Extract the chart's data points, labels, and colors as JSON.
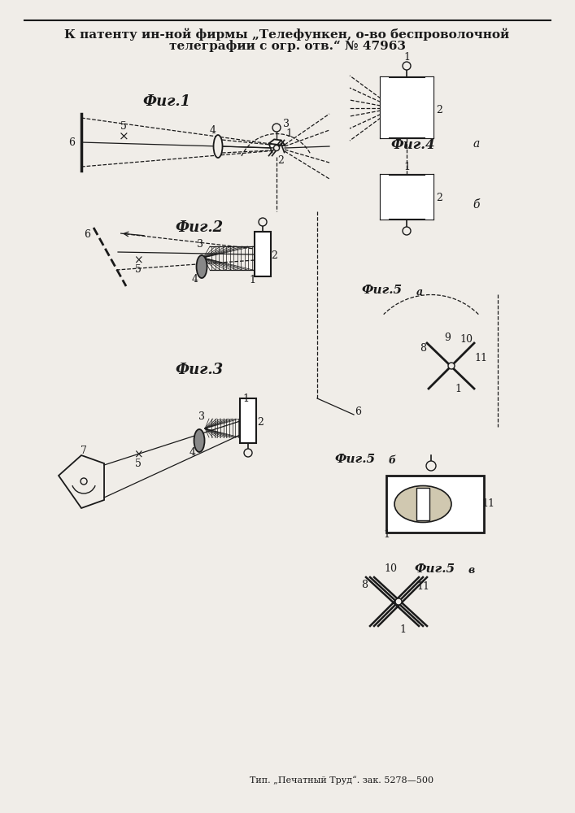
{
  "title_line1": "К патенту ин-ной фирмы „Телефункен, о-во беспроволочной",
  "title_line2": "телеграфии с огр. отв.“ № 47963",
  "footer": "Тип. „Печатный Труд“. зак. 5278—500",
  "bg_color": "#f0ede8",
  "line_color": "#1a1a1a"
}
